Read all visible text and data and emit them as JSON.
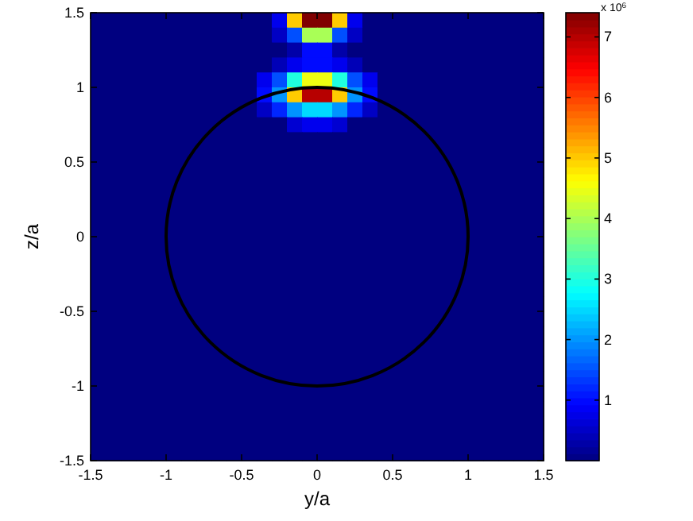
{
  "chart_data": {
    "type": "heatmap",
    "xlabel": "y/a",
    "ylabel": "z/a",
    "clabel": "x 10$^{6}$",
    "xlim": [
      -1.5,
      1.5
    ],
    "xticks": [
      -1.5,
      -1,
      -0.5,
      0,
      0.5,
      1,
      1.5
    ],
    "ylim": [
      -1.5,
      1.5
    ],
    "yticks": [
      -1.5,
      -1,
      -0.5,
      0,
      0.5,
      1,
      1.5
    ],
    "clim": [
      0,
      7.4
    ],
    "cticks": [
      1,
      2,
      3,
      4,
      5,
      6,
      7
    ],
    "cells": [
      [
        0,
        0,
        0,
        0,
        0,
        0,
        0,
        0,
        0,
        0,
        0,
        0,
        0.8,
        5,
        7.4,
        7.4,
        5,
        0.8,
        0,
        0,
        0,
        0,
        0,
        0,
        0,
        0,
        0,
        0,
        0,
        0
      ],
      [
        0,
        0,
        0,
        0,
        0,
        0,
        0,
        0,
        0,
        0,
        0,
        0,
        0.5,
        1.5,
        4,
        4,
        1.5,
        0.5,
        0,
        0,
        0,
        0,
        0,
        0,
        0,
        0,
        0,
        0,
        0,
        0
      ],
      [
        0,
        0,
        0,
        0,
        0,
        0,
        0,
        0,
        0,
        0,
        0,
        0,
        0,
        0.3,
        1,
        1,
        0.3,
        0,
        0,
        0,
        0,
        0,
        0,
        0,
        0,
        0,
        0,
        0,
        0,
        0
      ],
      [
        0,
        0,
        0,
        0,
        0,
        0,
        0,
        0,
        0,
        0,
        0,
        0,
        0.4,
        0.8,
        1,
        1,
        0.8,
        0.4,
        0,
        0,
        0,
        0,
        0,
        0,
        0,
        0,
        0,
        0,
        0,
        0
      ],
      [
        0,
        0,
        0,
        0,
        0,
        0,
        0,
        0,
        0,
        0,
        0,
        0.8,
        1.5,
        3,
        4.5,
        4.5,
        3,
        1.5,
        0.8,
        0,
        0,
        0,
        0,
        0,
        0,
        0,
        0,
        0,
        0,
        0
      ],
      [
        0,
        0,
        0,
        0,
        0,
        0,
        0,
        0,
        0,
        0,
        0,
        1,
        2,
        5,
        7,
        7,
        5,
        2,
        1,
        0,
        0,
        0,
        0,
        0,
        0,
        0,
        0,
        0,
        0,
        0
      ],
      [
        0,
        0,
        0,
        0,
        0,
        0,
        0,
        0,
        0,
        0,
        0,
        0.5,
        1.2,
        2,
        2.5,
        2.5,
        2,
        1.2,
        0.5,
        0,
        0,
        0,
        0,
        0,
        0,
        0,
        0,
        0,
        0,
        0
      ],
      [
        0,
        0,
        0,
        0,
        0,
        0,
        0,
        0,
        0,
        0,
        0,
        0,
        0,
        0.6,
        0.8,
        0.8,
        0.6,
        0,
        0,
        0,
        0,
        0,
        0,
        0,
        0,
        0,
        0,
        0,
        0,
        0
      ],
      [
        0,
        0,
        0,
        0,
        0,
        0,
        0,
        0,
        0,
        0,
        0,
        0,
        0,
        0,
        0,
        0,
        0,
        0,
        0,
        0,
        0,
        0,
        0,
        0,
        0,
        0,
        0,
        0,
        0,
        0
      ],
      [
        0,
        0,
        0,
        0,
        0,
        0,
        0,
        0,
        0,
        0,
        0,
        0,
        0,
        0,
        0,
        0,
        0,
        0,
        0,
        0,
        0,
        0,
        0,
        0,
        0,
        0,
        0,
        0,
        0,
        0
      ],
      [
        0,
        0,
        0,
        0,
        0,
        0,
        0,
        0,
        0,
        0,
        0,
        0,
        0,
        0,
        0,
        0,
        0,
        0,
        0,
        0,
        0,
        0,
        0,
        0,
        0,
        0,
        0,
        0,
        0,
        0
      ],
      [
        0,
        0,
        0,
        0,
        0,
        0,
        0,
        0,
        0,
        0,
        0,
        0,
        0,
        0,
        0,
        0,
        0,
        0,
        0,
        0,
        0,
        0,
        0,
        0,
        0,
        0,
        0,
        0,
        0,
        0
      ],
      [
        0,
        0,
        0,
        0,
        0,
        0,
        0,
        0,
        0,
        0,
        0,
        0,
        0,
        0,
        0,
        0,
        0,
        0,
        0,
        0,
        0,
        0,
        0,
        0,
        0,
        0,
        0,
        0,
        0,
        0
      ],
      [
        0,
        0,
        0,
        0,
        0,
        0,
        0,
        0,
        0,
        0,
        0,
        0,
        0,
        0,
        0,
        0,
        0,
        0,
        0,
        0,
        0,
        0,
        0,
        0,
        0,
        0,
        0,
        0,
        0,
        0
      ],
      [
        0,
        0,
        0,
        0,
        0,
        0,
        0,
        0,
        0,
        0,
        0,
        0,
        0,
        0,
        0,
        0,
        0,
        0,
        0,
        0,
        0,
        0,
        0,
        0,
        0,
        0,
        0,
        0,
        0,
        0
      ],
      [
        0,
        0,
        0,
        0,
        0,
        0,
        0,
        0,
        0,
        0,
        0,
        0,
        0,
        0,
        0,
        0,
        0,
        0,
        0,
        0,
        0,
        0,
        0,
        0,
        0,
        0,
        0,
        0,
        0,
        0
      ],
      [
        0,
        0,
        0,
        0,
        0,
        0,
        0,
        0,
        0,
        0,
        0,
        0,
        0,
        0,
        0,
        0,
        0,
        0,
        0,
        0,
        0,
        0,
        0,
        0,
        0,
        0,
        0,
        0,
        0,
        0
      ],
      [
        0,
        0,
        0,
        0,
        0,
        0,
        0,
        0,
        0,
        0,
        0,
        0,
        0,
        0,
        0,
        0,
        0,
        0,
        0,
        0,
        0,
        0,
        0,
        0,
        0,
        0,
        0,
        0,
        0,
        0
      ],
      [
        0,
        0,
        0,
        0,
        0,
        0,
        0,
        0,
        0,
        0,
        0,
        0,
        0,
        0,
        0,
        0,
        0,
        0,
        0,
        0,
        0,
        0,
        0,
        0,
        0,
        0,
        0,
        0,
        0,
        0
      ],
      [
        0,
        0,
        0,
        0,
        0,
        0,
        0,
        0,
        0,
        0,
        0,
        0,
        0,
        0,
        0,
        0,
        0,
        0,
        0,
        0,
        0,
        0,
        0,
        0,
        0,
        0,
        0,
        0,
        0,
        0
      ],
      [
        0,
        0,
        0,
        0,
        0,
        0,
        0,
        0,
        0,
        0,
        0,
        0,
        0,
        0,
        0,
        0,
        0,
        0,
        0,
        0,
        0,
        0,
        0,
        0,
        0,
        0,
        0,
        0,
        0,
        0
      ],
      [
        0,
        0,
        0,
        0,
        0,
        0,
        0,
        0,
        0,
        0,
        0,
        0,
        0,
        0,
        0,
        0,
        0,
        0,
        0,
        0,
        0,
        0,
        0,
        0,
        0,
        0,
        0,
        0,
        0,
        0
      ],
      [
        0,
        0,
        0,
        0,
        0,
        0,
        0,
        0,
        0,
        0,
        0,
        0,
        0,
        0,
        0,
        0,
        0,
        0,
        0,
        0,
        0,
        0,
        0,
        0,
        0,
        0,
        0,
        0,
        0,
        0
      ],
      [
        0,
        0,
        0,
        0,
        0,
        0,
        0,
        0,
        0,
        0,
        0,
        0,
        0,
        0,
        0,
        0,
        0,
        0,
        0,
        0,
        0,
        0,
        0,
        0,
        0,
        0,
        0,
        0,
        0,
        0
      ],
      [
        0,
        0,
        0,
        0,
        0,
        0,
        0,
        0,
        0,
        0,
        0,
        0,
        0,
        0,
        0,
        0,
        0,
        0,
        0,
        0,
        0,
        0,
        0,
        0,
        0,
        0,
        0,
        0,
        0,
        0
      ],
      [
        0,
        0,
        0,
        0,
        0,
        0,
        0,
        0,
        0,
        0,
        0,
        0,
        0,
        0,
        0,
        0,
        0,
        0,
        0,
        0,
        0,
        0,
        0,
        0,
        0,
        0,
        0,
        0,
        0,
        0
      ],
      [
        0,
        0,
        0,
        0,
        0,
        0,
        0,
        0,
        0,
        0,
        0,
        0,
        0,
        0,
        0,
        0,
        0,
        0,
        0,
        0,
        0,
        0,
        0,
        0,
        0,
        0,
        0,
        0,
        0,
        0
      ],
      [
        0,
        0,
        0,
        0,
        0,
        0,
        0,
        0,
        0,
        0,
        0,
        0,
        0,
        0,
        0,
        0,
        0,
        0,
        0,
        0,
        0,
        0,
        0,
        0,
        0,
        0,
        0,
        0,
        0,
        0
      ],
      [
        0,
        0,
        0,
        0,
        0,
        0,
        0,
        0,
        0,
        0,
        0,
        0,
        0,
        0,
        0,
        0,
        0,
        0,
        0,
        0,
        0,
        0,
        0,
        0,
        0,
        0,
        0,
        0,
        0,
        0
      ],
      [
        0,
        0,
        0,
        0,
        0,
        0,
        0,
        0,
        0,
        0,
        0,
        0,
        0,
        0,
        0,
        0,
        0,
        0,
        0,
        0,
        0,
        0,
        0,
        0,
        0,
        0,
        0,
        0,
        0,
        0
      ]
    ]
  }
}
